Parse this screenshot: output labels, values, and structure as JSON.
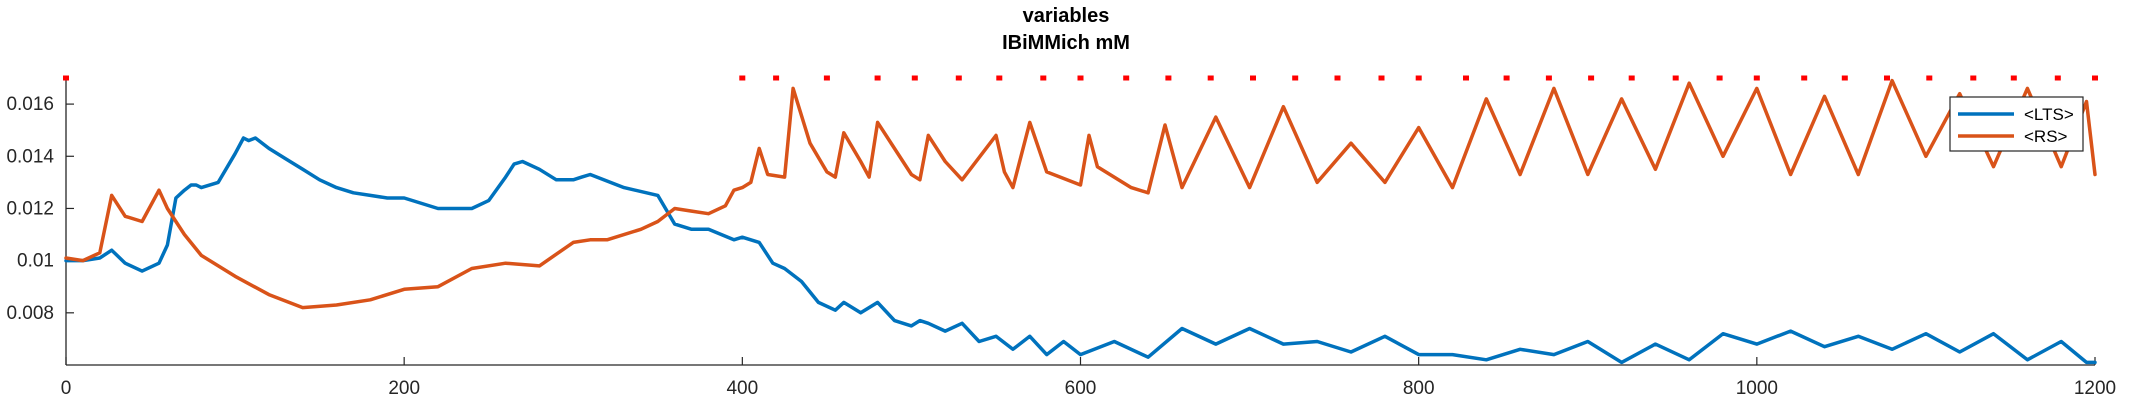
{
  "chart_data": {
    "type": "line",
    "title": "variables",
    "subtitle": "IBiMMich mM",
    "xlabel": "",
    "ylabel": "",
    "xlim": [
      0,
      1200
    ],
    "ylim": [
      0.006,
      0.017
    ],
    "x_ticks": [
      0,
      200,
      400,
      600,
      800,
      1000,
      1200
    ],
    "x_tick_labels": [
      "0",
      "200",
      "400",
      "600",
      "800",
      "1000",
      "1200"
    ],
    "y_ticks": [
      0.008,
      0.01,
      0.012,
      0.014,
      0.016
    ],
    "y_tick_labels": [
      "0.008",
      "0.01",
      "0.012",
      "0.014",
      "0.016"
    ],
    "grid": false,
    "legend_position": "top-right",
    "colors": {
      "LTS": "#0072BD",
      "RS": "#D95319",
      "marker": "#FF0000"
    },
    "series": [
      {
        "name": "<LTS>",
        "color": "#0072BD",
        "x": [
          0,
          10,
          20,
          27,
          35,
          45,
          55,
          60,
          65,
          70,
          74,
          77,
          80,
          90,
          100,
          105,
          108,
          112,
          120,
          130,
          140,
          150,
          160,
          170,
          180,
          190,
          200,
          220,
          240,
          250,
          260,
          265,
          270,
          280,
          290,
          300,
          305,
          310,
          330,
          350,
          360,
          370,
          380,
          395,
          400,
          410,
          418,
          425,
          435,
          445,
          455,
          460,
          470,
          475,
          480,
          490,
          500,
          505,
          510,
          520,
          530,
          540,
          550,
          560,
          570,
          580,
          590,
          600,
          620,
          640,
          660,
          680,
          700,
          720,
          740,
          760,
          780,
          800,
          820,
          840,
          860,
          880,
          900,
          920,
          940,
          960,
          980,
          1000,
          1020,
          1040,
          1060,
          1080,
          1100,
          1120,
          1140,
          1160,
          1180,
          1195,
          1200
        ],
        "y": [
          0.01,
          0.01,
          0.0101,
          0.0104,
          0.0099,
          0.0096,
          0.0099,
          0.0106,
          0.0124,
          0.0127,
          0.0129,
          0.0129,
          0.0128,
          0.013,
          0.0141,
          0.0147,
          0.0146,
          0.0147,
          0.0143,
          0.0139,
          0.0135,
          0.0131,
          0.0128,
          0.0126,
          0.0125,
          0.0124,
          0.0124,
          0.012,
          0.012,
          0.0123,
          0.0132,
          0.0137,
          0.0138,
          0.0135,
          0.0131,
          0.0131,
          0.0132,
          0.0133,
          0.0128,
          0.0125,
          0.0114,
          0.0112,
          0.0112,
          0.0108,
          0.0109,
          0.0107,
          0.0099,
          0.0097,
          0.0092,
          0.0084,
          0.0081,
          0.0084,
          0.008,
          0.0082,
          0.0084,
          0.0077,
          0.0075,
          0.0077,
          0.0076,
          0.0073,
          0.0076,
          0.0069,
          0.0071,
          0.0066,
          0.0071,
          0.0064,
          0.0069,
          0.0064,
          0.0069,
          0.0063,
          0.0074,
          0.0068,
          0.0074,
          0.0068,
          0.0069,
          0.0065,
          0.0071,
          0.0064,
          0.0064,
          0.0062,
          0.0066,
          0.0064,
          0.0069,
          0.0061,
          0.0068,
          0.0062,
          0.0072,
          0.0068,
          0.0073,
          0.0067,
          0.0071,
          0.0066,
          0.0072,
          0.0065,
          0.0072,
          0.0062,
          0.0069,
          0.0061,
          0.0061
        ]
      },
      {
        "name": "<RS>",
        "color": "#D95319",
        "x": [
          0,
          10,
          20,
          27,
          35,
          45,
          55,
          60,
          70,
          80,
          100,
          120,
          140,
          160,
          180,
          200,
          220,
          240,
          260,
          280,
          300,
          310,
          320,
          340,
          350,
          360,
          370,
          380,
          390,
          395,
          400,
          405,
          410,
          415,
          425,
          430,
          440,
          450,
          455,
          460,
          470,
          475,
          480,
          500,
          505,
          510,
          520,
          530,
          550,
          555,
          560,
          570,
          580,
          600,
          605,
          610,
          630,
          640,
          650,
          660,
          680,
          700,
          720,
          740,
          760,
          780,
          800,
          820,
          840,
          860,
          880,
          900,
          920,
          940,
          960,
          980,
          1000,
          1020,
          1040,
          1060,
          1080,
          1100,
          1120,
          1140,
          1160,
          1180,
          1195,
          1200
        ],
        "y": [
          0.0101,
          0.01,
          0.0103,
          0.0125,
          0.0117,
          0.0115,
          0.0127,
          0.012,
          0.011,
          0.0102,
          0.0094,
          0.0087,
          0.0082,
          0.0083,
          0.0085,
          0.0089,
          0.009,
          0.0097,
          0.0099,
          0.0098,
          0.0107,
          0.0108,
          0.0108,
          0.0112,
          0.0115,
          0.012,
          0.0119,
          0.0118,
          0.0121,
          0.0127,
          0.0128,
          0.013,
          0.0143,
          0.0133,
          0.0132,
          0.0166,
          0.0145,
          0.0134,
          0.0132,
          0.0149,
          0.0138,
          0.0132,
          0.0153,
          0.0133,
          0.0131,
          0.0148,
          0.0138,
          0.0131,
          0.0148,
          0.0134,
          0.0128,
          0.0153,
          0.0134,
          0.0129,
          0.0148,
          0.0136,
          0.0128,
          0.0126,
          0.0152,
          0.0128,
          0.0155,
          0.0128,
          0.0159,
          0.013,
          0.0145,
          0.013,
          0.0151,
          0.0128,
          0.0162,
          0.0133,
          0.0166,
          0.0133,
          0.0162,
          0.0135,
          0.0168,
          0.014,
          0.0166,
          0.0133,
          0.0163,
          0.0133,
          0.0169,
          0.014,
          0.0164,
          0.0136,
          0.0166,
          0.0136,
          0.0161,
          0.0133
        ]
      }
    ],
    "markers": {
      "color": "#FF0000",
      "y": 0.017,
      "x": [
        0,
        400,
        420,
        450,
        480,
        502,
        528,
        552,
        578,
        600,
        627,
        652,
        677,
        702,
        727,
        752,
        778,
        800,
        828,
        852,
        877,
        902,
        926,
        952,
        978,
        1000,
        1028,
        1052,
        1077,
        1102,
        1128,
        1152,
        1178,
        1200
      ]
    },
    "legend": {
      "entries": [
        {
          "label": "<LTS>",
          "color": "#0072BD"
        },
        {
          "label": "<RS>",
          "color": "#D95319"
        }
      ]
    }
  }
}
